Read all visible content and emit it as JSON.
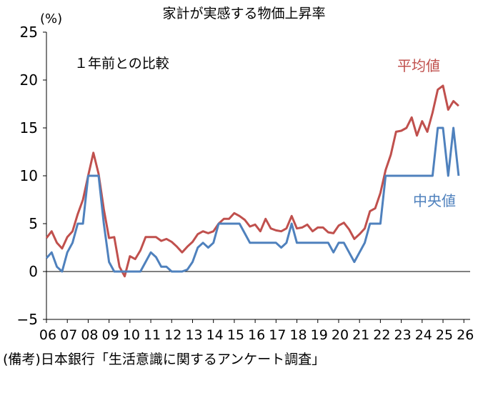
{
  "chart_data": {
    "type": "line",
    "title": "家計が実感する物価上昇率",
    "unit_label": "(%)",
    "annotation": "１年前との比較",
    "note": "(備考)日本銀行「生活意識に関するアンケート調査」",
    "xlabel": "",
    "ylabel": "(%)",
    "ylim": [
      -5,
      25
    ],
    "yticks": [
      -5,
      0,
      5,
      10,
      15,
      20,
      25
    ],
    "xlim": [
      2006,
      2026.3
    ],
    "x_tick_labels": [
      "06",
      "07",
      "08",
      "09",
      "10",
      "11",
      "12",
      "13",
      "14",
      "15",
      "16",
      "17",
      "18",
      "19",
      "20",
      "21",
      "22",
      "23",
      "24",
      "25",
      "26"
    ],
    "x_tick_years": [
      2006,
      2007,
      2008,
      2009,
      2010,
      2011,
      2012,
      2013,
      2014,
      2015,
      2016,
      2017,
      2018,
      2019,
      2020,
      2021,
      2022,
      2023,
      2024,
      2025,
      2026
    ],
    "colors": {
      "mean": "#c0504d",
      "median": "#4f81bd",
      "axis": "#000000"
    },
    "series": [
      {
        "name": "平均値",
        "color": "#c0504d",
        "x": [
          2006.0,
          2006.25,
          2006.5,
          2006.75,
          2007.0,
          2007.25,
          2007.5,
          2007.75,
          2008.0,
          2008.25,
          2008.5,
          2008.75,
          2009.0,
          2009.25,
          2009.5,
          2009.75,
          2010.0,
          2010.25,
          2010.5,
          2010.75,
          2011.0,
          2011.25,
          2011.5,
          2011.75,
          2012.0,
          2012.25,
          2012.5,
          2012.75,
          2013.0,
          2013.25,
          2013.5,
          2013.75,
          2014.0,
          2014.25,
          2014.5,
          2014.75,
          2015.0,
          2015.25,
          2015.5,
          2015.75,
          2016.0,
          2016.25,
          2016.5,
          2016.75,
          2017.0,
          2017.25,
          2017.5,
          2017.75,
          2018.0,
          2018.25,
          2018.5,
          2018.75,
          2019.0,
          2019.25,
          2019.5,
          2019.75,
          2020.0,
          2020.25,
          2020.5,
          2020.75,
          2021.0,
          2021.25,
          2021.5,
          2021.75,
          2022.0,
          2022.25,
          2022.5,
          2022.75,
          2023.0,
          2023.25,
          2023.5,
          2023.75,
          2024.0,
          2024.25,
          2024.5,
          2024.75,
          2025.0,
          2025.25,
          2025.5,
          2025.75,
          2026.0
        ],
        "values": [
          3.5,
          4.2,
          3.0,
          2.4,
          3.6,
          4.2,
          6.0,
          7.5,
          10.0,
          12.4,
          10.2,
          6.5,
          3.5,
          3.6,
          0.5,
          -0.5,
          1.6,
          1.3,
          2.2,
          3.6,
          3.6,
          3.6,
          3.2,
          3.4,
          3.1,
          2.6,
          2.0,
          2.6,
          3.1,
          3.9,
          4.2,
          4.0,
          4.2,
          5.0,
          5.5,
          5.5,
          6.1,
          5.8,
          5.4,
          4.7,
          4.9,
          4.2,
          5.5,
          4.5,
          4.3,
          4.2,
          4.5,
          5.8,
          4.5,
          4.6,
          4.9,
          4.2,
          4.6,
          4.6,
          4.1,
          4.0,
          4.8,
          5.1,
          4.4,
          3.4,
          3.9,
          4.5,
          6.3,
          6.6,
          8.2,
          10.6,
          12.2,
          14.6,
          14.7,
          15.0,
          16.1,
          14.2,
          15.7,
          14.6,
          16.6,
          19.0,
          19.4,
          16.9,
          17.8,
          17.3,
          null
        ]
      },
      {
        "name": "中央値",
        "color": "#4f81bd",
        "x": [
          2006.0,
          2006.25,
          2006.5,
          2006.75,
          2007.0,
          2007.25,
          2007.5,
          2007.75,
          2008.0,
          2008.25,
          2008.5,
          2008.75,
          2009.0,
          2009.25,
          2009.5,
          2009.75,
          2010.0,
          2010.25,
          2010.5,
          2010.75,
          2011.0,
          2011.25,
          2011.5,
          2011.75,
          2012.0,
          2012.25,
          2012.5,
          2012.75,
          2013.0,
          2013.25,
          2013.5,
          2013.75,
          2014.0,
          2014.25,
          2014.5,
          2014.75,
          2015.0,
          2015.25,
          2015.5,
          2015.75,
          2016.0,
          2016.25,
          2016.5,
          2016.75,
          2017.0,
          2017.25,
          2017.5,
          2017.75,
          2018.0,
          2018.25,
          2018.5,
          2018.75,
          2019.0,
          2019.25,
          2019.5,
          2019.75,
          2020.0,
          2020.25,
          2020.5,
          2020.75,
          2021.0,
          2021.25,
          2021.5,
          2021.75,
          2022.0,
          2022.25,
          2022.5,
          2022.75,
          2023.0,
          2023.25,
          2023.5,
          2023.75,
          2024.0,
          2024.25,
          2024.5,
          2024.75,
          2025.0,
          2025.25,
          2025.5,
          2025.75,
          2026.0
        ],
        "values": [
          1.4,
          2.0,
          0.5,
          0,
          2.0,
          3.0,
          5.0,
          5.0,
          10.0,
          10.0,
          10.0,
          5.0,
          1.0,
          0,
          0,
          0,
          0,
          0,
          0,
          1.0,
          2.0,
          1.5,
          0.5,
          0.5,
          0,
          0,
          0,
          0.2,
          1.0,
          2.5,
          3.0,
          2.5,
          3.0,
          5.0,
          5.0,
          5.0,
          5.0,
          5.0,
          4.0,
          3.0,
          3.0,
          3.0,
          3.0,
          3.0,
          3.0,
          2.5,
          3.0,
          5.0,
          3.0,
          3.0,
          3.0,
          3.0,
          3.0,
          3.0,
          3.0,
          2.0,
          3.0,
          3.0,
          2.0,
          1.0,
          2.0,
          3.0,
          5.0,
          5.0,
          5.0,
          10.0,
          10.0,
          10.0,
          10.0,
          10.0,
          10.0,
          10.0,
          10.0,
          10.0,
          10.0,
          15.0,
          15.0,
          10.0,
          15.0,
          10.0,
          null
        ]
      }
    ],
    "series_labels": {
      "mean": "平均値",
      "median": "中央値"
    }
  }
}
